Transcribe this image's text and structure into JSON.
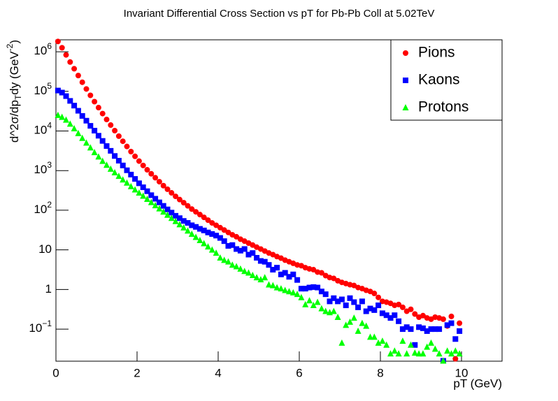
{
  "chart_data": {
    "type": "scatter",
    "title": "Invariant Differential Cross Section vs pT for Pb-Pb Coll at 5.02TeV",
    "x_label": "pT (GeV)",
    "y_label": [
      "d^2σ/dp",
      "T",
      "dy (GeV",
      "-2",
      ")"
    ],
    "log_y": true,
    "legend": "top-right",
    "xlim": [
      0,
      11
    ],
    "xticks": [
      0,
      2,
      4,
      6,
      8,
      10
    ],
    "ylim": [
      0.0155,
      2000000
    ],
    "yticks": [
      {
        "value": 0.1,
        "label": "10",
        "exponent": "−1"
      },
      1,
      10,
      {
        "value": 100,
        "label": "10",
        "exponent": "2"
      },
      {
        "value": 1000,
        "label": "10",
        "exponent": "3"
      },
      {
        "value": 10000,
        "label": "10",
        "exponent": "4"
      },
      {
        "value": 100000,
        "label": "10",
        "exponent": "5"
      },
      {
        "value": 1000000,
        "label": "10",
        "exponent": "6"
      }
    ],
    "x": [
      0.05,
      0.15,
      0.25,
      0.35,
      0.45,
      0.55,
      0.65,
      0.75,
      0.85,
      0.95,
      1.05,
      1.15,
      1.25,
      1.35,
      1.45,
      1.55,
      1.65,
      1.75,
      1.85,
      1.95,
      2.05,
      2.15,
      2.25,
      2.35,
      2.45,
      2.55,
      2.65,
      2.75,
      2.85,
      2.95,
      3.05,
      3.15,
      3.25,
      3.35,
      3.45,
      3.55,
      3.65,
      3.75,
      3.85,
      3.95,
      4.05,
      4.15,
      4.25,
      4.35,
      4.45,
      4.55,
      4.65,
      4.75,
      4.85,
      4.95,
      5.05,
      5.15,
      5.25,
      5.35,
      5.45,
      5.55,
      5.65,
      5.75,
      5.85,
      5.95,
      6.05,
      6.15,
      6.25,
      6.35,
      6.45,
      6.55,
      6.65,
      6.75,
      6.85,
      6.95,
      7.05,
      7.15,
      7.25,
      7.35,
      7.45,
      7.55,
      7.65,
      7.75,
      7.85,
      7.95,
      8.05,
      8.15,
      8.25,
      8.35,
      8.45,
      8.55,
      8.65,
      8.75,
      8.85,
      8.95,
      9.05,
      9.15,
      9.25,
      9.35,
      9.45,
      9.55,
      9.65,
      9.75,
      9.85,
      9.95
    ],
    "series": [
      {
        "name": "Pions",
        "color": "#ff0000",
        "marker": "circle",
        "values": [
          1820000,
          1260000,
          832000,
          550000,
          372000,
          251000,
          170000,
          115000,
          79400,
          55000,
          38900,
          27500,
          19500,
          14100,
          10200,
          7410,
          5500,
          4070,
          3020,
          2290,
          1740,
          1350,
          1050,
          832,
          661,
          525,
          417,
          339,
          275,
          224,
          186,
          155,
          129,
          107,
          91.2,
          77.6,
          66.1,
          56.2,
          47.9,
          41.7,
          36.3,
          31.6,
          27.5,
          24.0,
          21.4,
          18.6,
          16.6,
          14.8,
          13.2,
          11.7,
          10.5,
          9.33,
          8.32,
          7.59,
          6.76,
          6.17,
          5.5,
          5.01,
          4.57,
          4.17,
          3.98,
          3.55,
          3.31,
          3.16,
          2.75,
          2.63,
          2.24,
          2.0,
          1.9,
          1.66,
          1.51,
          1.41,
          1.32,
          1.26,
          1.12,
          1.05,
          0.955,
          0.891,
          0.794,
          0.631,
          0.501,
          0.479,
          0.447,
          0.398,
          0.417,
          0.355,
          0.282,
          0.316,
          0.24,
          0.2,
          0.219,
          0.191,
          0.178,
          0.2,
          0.191,
          0.178,
          0.12,
          0.209,
          0.0178,
          0.141
        ]
      },
      {
        "name": "Kaons",
        "color": "#0000ff",
        "marker": "square",
        "values": [
          105000,
          93300,
          75900,
          57500,
          43700,
          32400,
          24000,
          18200,
          13500,
          10200,
          7590,
          5620,
          4170,
          3160,
          2340,
          1780,
          1350,
          1020,
          794,
          617,
          479,
          380,
          302,
          240,
          195,
          158,
          129,
          105,
          87.1,
          72.4,
          63.1,
          53.7,
          47.9,
          41.7,
          38.0,
          33.9,
          30.9,
          27.5,
          25.1,
          22.9,
          20.0,
          16.6,
          12.6,
          13.2,
          10.5,
          9.55,
          10.5,
          7.59,
          8.32,
          6.31,
          5.25,
          5.01,
          4.17,
          3.16,
          3.55,
          2.4,
          2.63,
          2.09,
          2.4,
          1.74,
          1.05,
          1.05,
          1.12,
          1.15,
          1.12,
          0.891,
          0.759,
          0.501,
          0.603,
          0.501,
          0.562,
          0.398,
          0.603,
          0.479,
          0.355,
          0.501,
          0.282,
          0.331,
          0.302,
          0.398,
          0.251,
          0.224,
          0.191,
          0.224,
          0.158,
          0.1,
          0.112,
          0.1,
          0.0398,
          0.112,
          0.105,
          0.0891,
          0.1,
          0.1,
          0.1,
          0.0158,
          0.126,
          0.141,
          0.0562,
          0.0891
        ]
      },
      {
        "name": "Protons",
        "color": "#00ff00",
        "marker": "triangle",
        "values": [
          25100,
          22400,
          19100,
          15100,
          11500,
          8710,
          6610,
          5010,
          3800,
          2880,
          2240,
          1740,
          1380,
          1100,
          891,
          724,
          589,
          490,
          398,
          331,
          275,
          229,
          191,
          158,
          132,
          110,
          91.2,
          75.9,
          63.1,
          52.5,
          43.7,
          36.3,
          30.2,
          25.1,
          20.9,
          17.4,
          14.5,
          12.0,
          10.0,
          8.32,
          6.31,
          5.5,
          5.01,
          4.17,
          3.8,
          3.31,
          2.88,
          2.63,
          2.29,
          2.0,
          1.78,
          2.0,
          1.32,
          1.26,
          1.12,
          1.05,
          0.955,
          0.891,
          0.832,
          0.759,
          0.631,
          0.417,
          0.525,
          0.398,
          0.479,
          0.331,
          0.282,
          0.263,
          0.282,
          0.2,
          0.0447,
          0.126,
          0.151,
          0.191,
          0.0891,
          0.141,
          0.12,
          0.0631,
          0.0631,
          0.0447,
          0.0501,
          0.0398,
          0.024,
          0.0282,
          0.024,
          0.0501,
          0.024,
          0.0398,
          0.0251,
          0.024,
          0.024,
          0.0355,
          0.0447,
          0.0316,
          0.024,
          0.0158,
          0.0282,
          0.024,
          0.0282,
          0.024
        ]
      }
    ]
  }
}
